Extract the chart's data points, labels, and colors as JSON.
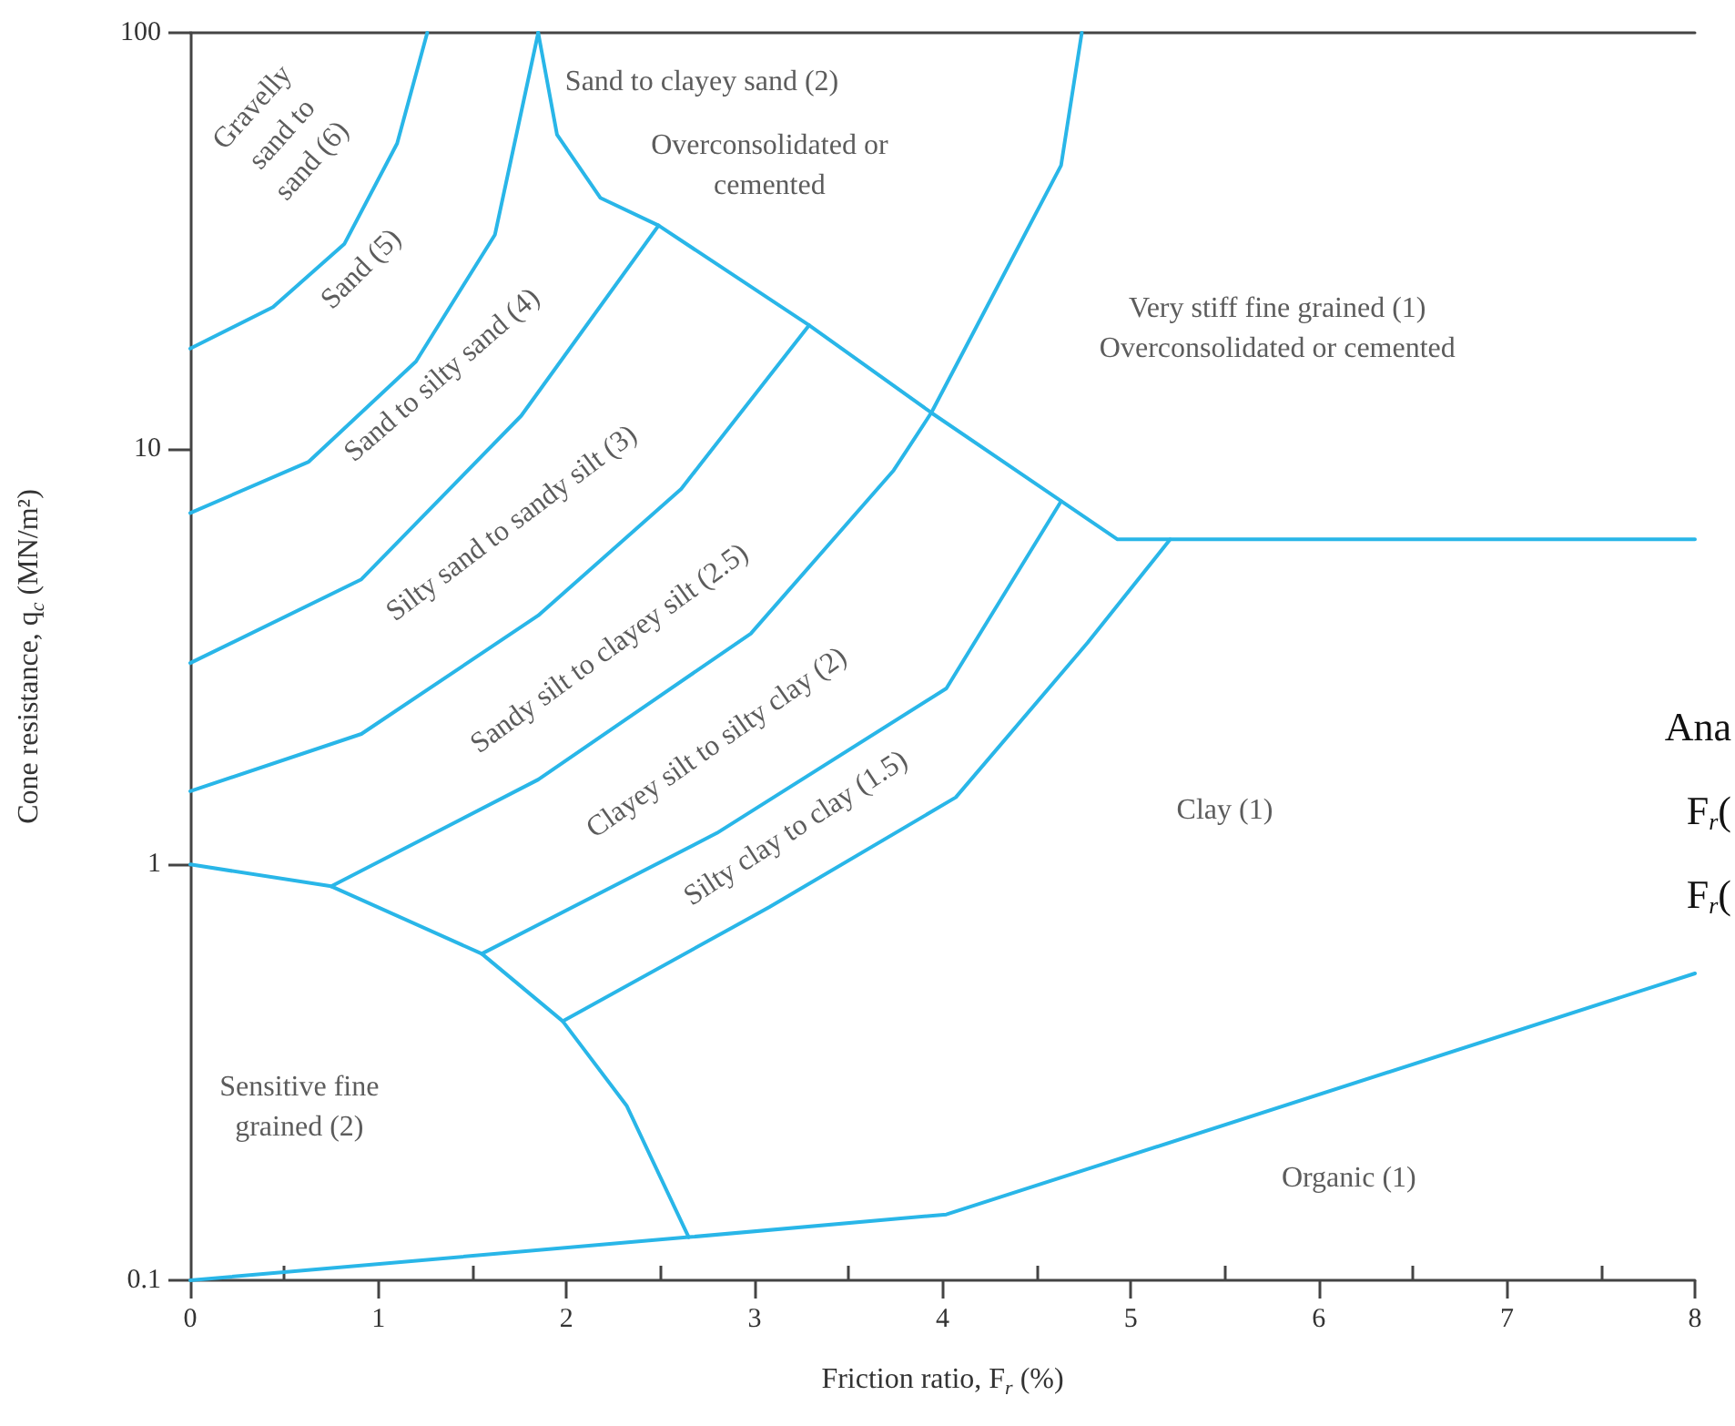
{
  "chart_data": {
    "type": "line",
    "xlabel": "Friction ratio, F$_{r}$ (%)",
    "ylabel": "Cone resistance, q$_{c}$ (MN/m²)",
    "log": "y",
    "xlim": [
      0,
      8
    ],
    "ylim": [
      0.1,
      100
    ],
    "xticks": [
      0,
      {
        "value": 0.5,
        "label": null
      },
      1,
      {
        "value": 1.5,
        "label": null
      },
      2,
      {
        "value": 2.5,
        "label": null
      },
      3,
      {
        "value": 3.5,
        "label": null
      },
      4,
      {
        "value": 4.5,
        "label": null
      },
      5,
      {
        "value": 5.5,
        "label": null
      },
      6,
      {
        "value": 6.5,
        "label": null
      },
      7,
      {
        "value": 7.5,
        "label": null
      },
      8
    ],
    "yticks": [
      0.1,
      1,
      10,
      100
    ],
    "grid": false,
    "marker": "none",
    "line_style": "solid",
    "series": [
      {
        "color": "#29b6e8",
        "x": [
          0,
          0.44,
          0.82,
          1.1,
          1.26
        ],
        "values": [
          17.4,
          21.9,
          31.1,
          54.2,
          100
        ]
      },
      {
        "color": "#29b6e8",
        "x": [
          0,
          0.63,
          1.2,
          1.62,
          1.85
        ],
        "values": [
          7.0,
          9.3,
          16.2,
          32.7,
          100
        ]
      },
      {
        "color": "#29b6e8",
        "x": [
          1.85,
          1.95,
          2.18,
          2.49,
          3.29,
          3.94,
          4.93,
          8
        ],
        "values": [
          100,
          56.9,
          40.1,
          34.4,
          19.8,
          12.2,
          6.05,
          6.05
        ]
      },
      {
        "color": "#29b6e8",
        "x": [
          0,
          0.91,
          1.76,
          2.49
        ],
        "values": [
          3.05,
          4.85,
          12.0,
          34.4
        ]
      },
      {
        "color": "#29b6e8",
        "x": [
          0,
          0.91,
          1.85,
          2.61,
          3.29
        ],
        "values": [
          1.5,
          2.06,
          3.97,
          8.0,
          19.8
        ]
      },
      {
        "color": "#29b6e8",
        "x": [
          0.75,
          1.85,
          2.98,
          3.74,
          3.94,
          4.63,
          4.74
        ],
        "values": [
          0.886,
          1.6,
          3.59,
          8.87,
          12.2,
          48,
          100
        ]
      },
      {
        "color": "#29b6e8",
        "x": [
          1.55,
          2.8,
          4.02,
          4.63
        ],
        "values": [
          0.61,
          1.19,
          2.65,
          7.47
        ]
      },
      {
        "color": "#29b6e8",
        "x": [
          1.98,
          3.08,
          4.07,
          4.77,
          5.21
        ],
        "values": [
          0.42,
          0.79,
          1.45,
          3.41,
          6.05
        ]
      },
      {
        "color": "#29b6e8",
        "x": [
          0,
          0.75,
          1.55,
          1.98,
          2.32,
          2.65
        ],
        "values": [
          1,
          0.886,
          0.61,
          0.42,
          0.263,
          0.127
        ]
      },
      {
        "color": "#29b6e8",
        "x": [
          0,
          2.65,
          4.02,
          8
        ],
        "values": [
          0.1,
          0.127,
          0.144,
          0.547
        ]
      }
    ],
    "annotations": [
      "Gravelly\nsand to\nsand (6)",
      "Sand (5)",
      "Sand to silty sand (4)",
      "Silty sand to sandy silt (3)",
      "Sandy silt to clayey silt (2.5)",
      "Clayey silt to silty clay (2)",
      "Silty clay to clay (1.5)",
      "Sand to clayey sand (2)",
      "Overconsolidated or\ncemented",
      "Very stiff fine grained (1)\nOverconsolidated or cemented",
      "Clay (1)",
      "Sensitive fine\ngrained (2)",
      "Organic (1)",
      "Ana",
      "F$_{r}$(",
      "F$_{r}$("
    ]
  }
}
